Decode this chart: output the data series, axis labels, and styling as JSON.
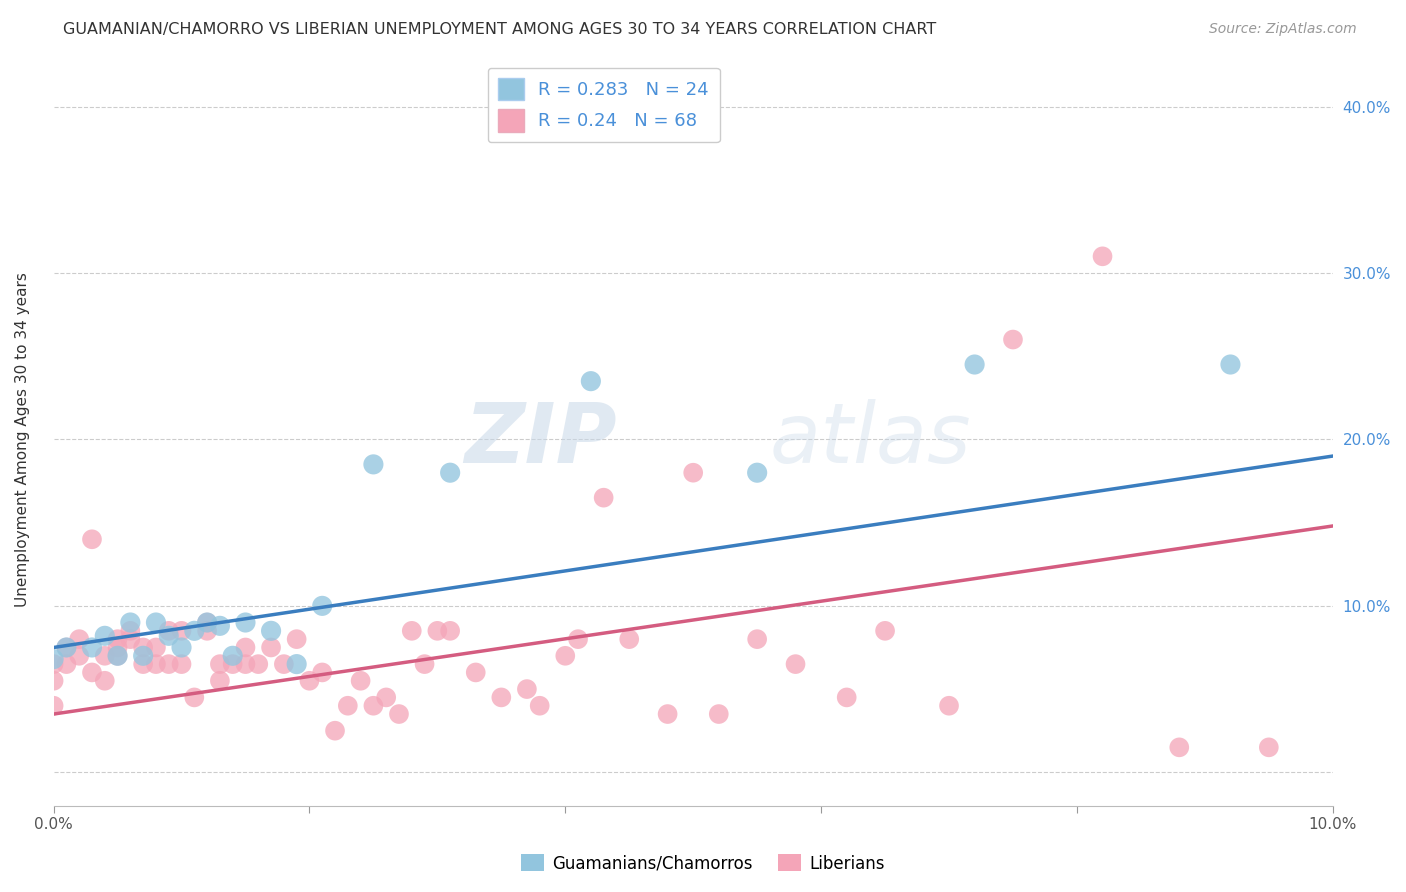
{
  "title": "GUAMANIAN/CHAMORRO VS LIBERIAN UNEMPLOYMENT AMONG AGES 30 TO 34 YEARS CORRELATION CHART",
  "source": "Source: ZipAtlas.com",
  "xlabel": "",
  "ylabel": "Unemployment Among Ages 30 to 34 years",
  "xlim": [
    0.0,
    0.1
  ],
  "ylim": [
    -0.02,
    0.42
  ],
  "xticks": [
    0.0,
    0.02,
    0.04,
    0.06,
    0.08,
    0.1
  ],
  "yticks": [
    0.0,
    0.1,
    0.2,
    0.3,
    0.4
  ],
  "xticklabels": [
    "0.0%",
    "",
    "",
    "",
    "",
    ""
  ],
  "yticklabels_right": [
    "",
    "10.0%",
    "20.0%",
    "30.0%",
    "40.0%"
  ],
  "ytick_right_color": "#4a90d9",
  "xtick_right_label": "10.0%",
  "grid_color": "#cccccc",
  "background_color": "#ffffff",
  "blue_color": "#92c5de",
  "pink_color": "#f4a5b8",
  "blue_line_color": "#3a7dbf",
  "pink_line_color": "#d45c80",
  "R_blue": 0.283,
  "N_blue": 24,
  "R_pink": 0.24,
  "N_pink": 68,
  "legend_label_blue": "Guamanians/Chamorros",
  "legend_label_pink": "Liberians",
  "watermark_zip": "ZIP",
  "watermark_atlas": "atlas",
  "blue_line_x0": 0.0,
  "blue_line_y0": 0.075,
  "blue_line_x1": 0.1,
  "blue_line_y1": 0.19,
  "pink_line_x0": 0.0,
  "pink_line_y0": 0.035,
  "pink_line_x1": 0.1,
  "pink_line_y1": 0.148,
  "blue_scatter_x": [
    0.0,
    0.001,
    0.003,
    0.004,
    0.005,
    0.006,
    0.007,
    0.008,
    0.009,
    0.01,
    0.011,
    0.012,
    0.013,
    0.014,
    0.015,
    0.017,
    0.019,
    0.021,
    0.025,
    0.031,
    0.042,
    0.055,
    0.072,
    0.092
  ],
  "blue_scatter_y": [
    0.068,
    0.075,
    0.075,
    0.082,
    0.07,
    0.09,
    0.07,
    0.09,
    0.082,
    0.075,
    0.085,
    0.09,
    0.088,
    0.07,
    0.09,
    0.085,
    0.065,
    0.1,
    0.185,
    0.18,
    0.235,
    0.18,
    0.245,
    0.245
  ],
  "pink_scatter_x": [
    0.0,
    0.0,
    0.0,
    0.001,
    0.001,
    0.002,
    0.002,
    0.003,
    0.003,
    0.004,
    0.004,
    0.005,
    0.005,
    0.005,
    0.006,
    0.006,
    0.007,
    0.007,
    0.008,
    0.008,
    0.009,
    0.009,
    0.01,
    0.01,
    0.011,
    0.012,
    0.012,
    0.013,
    0.013,
    0.014,
    0.015,
    0.015,
    0.016,
    0.017,
    0.018,
    0.019,
    0.02,
    0.021,
    0.022,
    0.023,
    0.024,
    0.025,
    0.026,
    0.027,
    0.028,
    0.029,
    0.03,
    0.031,
    0.033,
    0.035,
    0.037,
    0.038,
    0.04,
    0.041,
    0.043,
    0.045,
    0.048,
    0.05,
    0.052,
    0.055,
    0.058,
    0.062,
    0.065,
    0.07,
    0.075,
    0.082,
    0.088,
    0.095
  ],
  "pink_scatter_y": [
    0.065,
    0.055,
    0.04,
    0.075,
    0.065,
    0.07,
    0.08,
    0.14,
    0.06,
    0.07,
    0.055,
    0.075,
    0.08,
    0.07,
    0.08,
    0.085,
    0.075,
    0.065,
    0.075,
    0.065,
    0.085,
    0.065,
    0.065,
    0.085,
    0.045,
    0.085,
    0.09,
    0.065,
    0.055,
    0.065,
    0.075,
    0.065,
    0.065,
    0.075,
    0.065,
    0.08,
    0.055,
    0.06,
    0.025,
    0.04,
    0.055,
    0.04,
    0.045,
    0.035,
    0.085,
    0.065,
    0.085,
    0.085,
    0.06,
    0.045,
    0.05,
    0.04,
    0.07,
    0.08,
    0.165,
    0.08,
    0.035,
    0.18,
    0.035,
    0.08,
    0.065,
    0.045,
    0.085,
    0.04,
    0.26,
    0.31,
    0.015,
    0.015
  ]
}
